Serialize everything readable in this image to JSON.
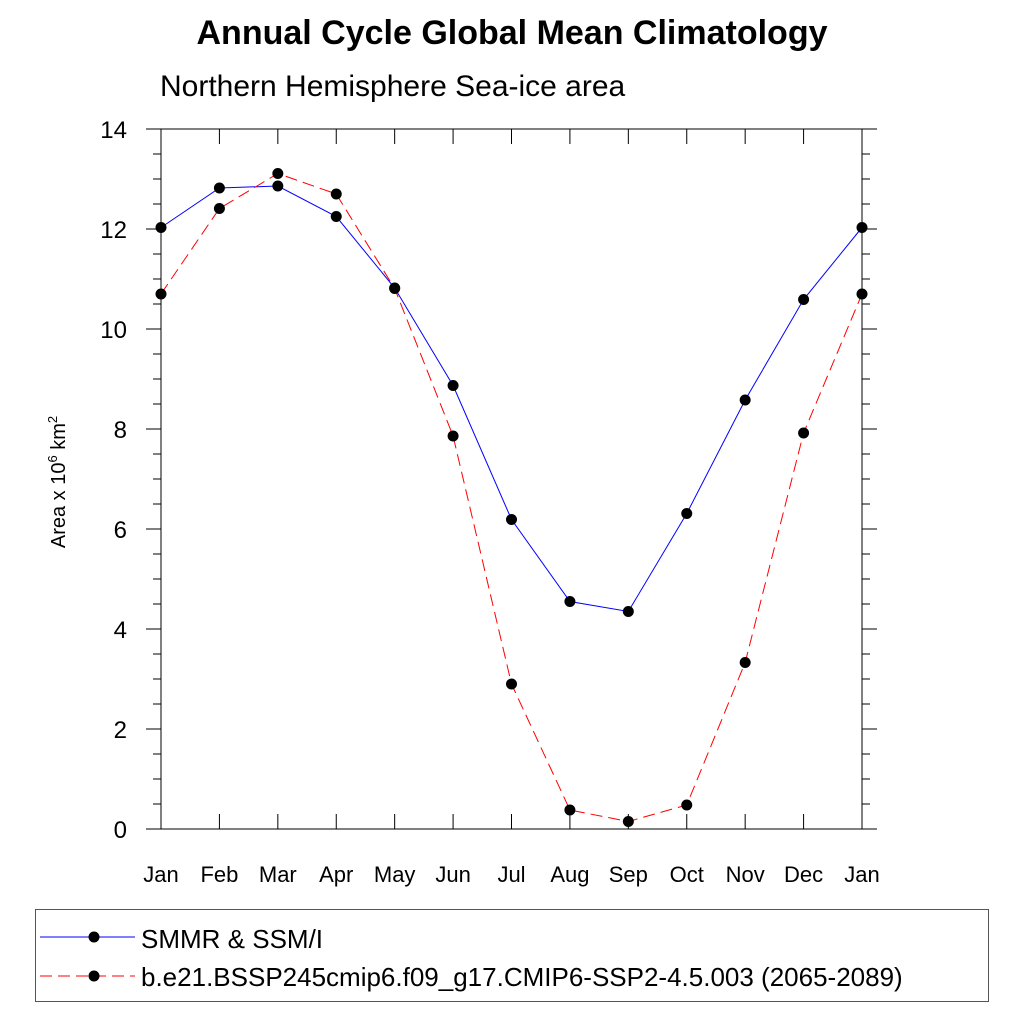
{
  "title": "Annual Cycle Global Mean Climatology",
  "subtitle": "Northern Hemisphere Sea-ice area",
  "ylabel": {
    "prefix": "Area x 10",
    "exp1": "6",
    "mid": " km",
    "exp2": "2"
  },
  "chart_data": {
    "type": "line",
    "x_labels": [
      "Jan",
      "Feb",
      "Mar",
      "Apr",
      "May",
      "Jun",
      "Jul",
      "Aug",
      "Sep",
      "Oct",
      "Nov",
      "Dec",
      "Jan"
    ],
    "ylim": [
      0,
      14
    ],
    "y_ticks": [
      0,
      2,
      4,
      6,
      8,
      10,
      12,
      14
    ],
    "series": [
      {
        "name": "SMMR & SSM/I",
        "color": "#0000ff",
        "dash": "solid",
        "values": [
          12.03,
          12.82,
          12.86,
          12.25,
          10.82,
          8.87,
          6.19,
          4.55,
          4.35,
          6.31,
          8.58,
          10.59,
          12.03
        ]
      },
      {
        "name": "b.e21.BSSP245cmip6.f09_g17.CMIP6-SSP2-4.5.003 (2065-2089)",
        "color": "#ff0000",
        "dash": "dashed",
        "values": [
          10.7,
          12.41,
          13.11,
          12.7,
          10.81,
          7.86,
          2.9,
          0.38,
          0.15,
          0.48,
          3.33,
          7.92,
          10.7
        ]
      }
    ],
    "grid": false,
    "legend_position": "bottom"
  }
}
